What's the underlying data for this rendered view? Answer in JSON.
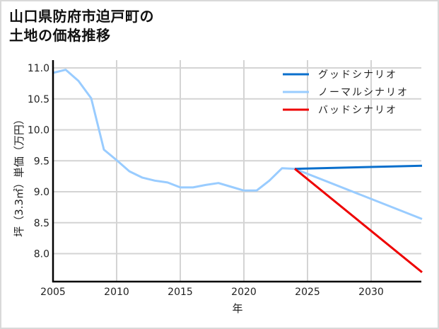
{
  "title_line1": "山口県防府市迫戸町の",
  "title_line2": "土地の価格推移",
  "chart_data": {
    "type": "line",
    "title": "山口県防府市迫戸町の土地の価格推移",
    "xlabel": "年",
    "ylabel": "坪（3.3㎡）単価（万円）",
    "xlim": [
      2005,
      2034
    ],
    "ylim": [
      7.55,
      11.1
    ],
    "x_ticks": [
      "2005",
      "2010",
      "2015",
      "2020",
      "2025",
      "2030"
    ],
    "y_ticks": [
      "8.0",
      "8.5",
      "9.0",
      "9.5",
      "10.0",
      "10.5",
      "11.0"
    ],
    "grid": true,
    "legend_position": "upper right",
    "series": [
      {
        "name": "グッドシナリオ",
        "color": "#0a6fcc",
        "x": [
          2024,
          2034
        ],
        "values": [
          9.37,
          9.42
        ]
      },
      {
        "name": "ノーマルシナリオ",
        "color": "#99ccff",
        "x": [
          2005,
          2006,
          2007,
          2008,
          2009,
          2010,
          2011,
          2012,
          2013,
          2014,
          2015,
          2016,
          2017,
          2018,
          2019,
          2020,
          2021,
          2022,
          2023,
          2024,
          2034
        ],
        "values": [
          10.92,
          10.97,
          10.79,
          10.51,
          9.68,
          9.51,
          9.33,
          9.23,
          9.18,
          9.15,
          9.07,
          9.07,
          9.11,
          9.14,
          9.08,
          9.02,
          9.02,
          9.18,
          9.38,
          9.37,
          8.56
        ]
      },
      {
        "name": "バッドシナリオ",
        "color": "#ee0000",
        "x": [
          2024,
          2034
        ],
        "values": [
          9.37,
          7.7
        ]
      }
    ]
  }
}
